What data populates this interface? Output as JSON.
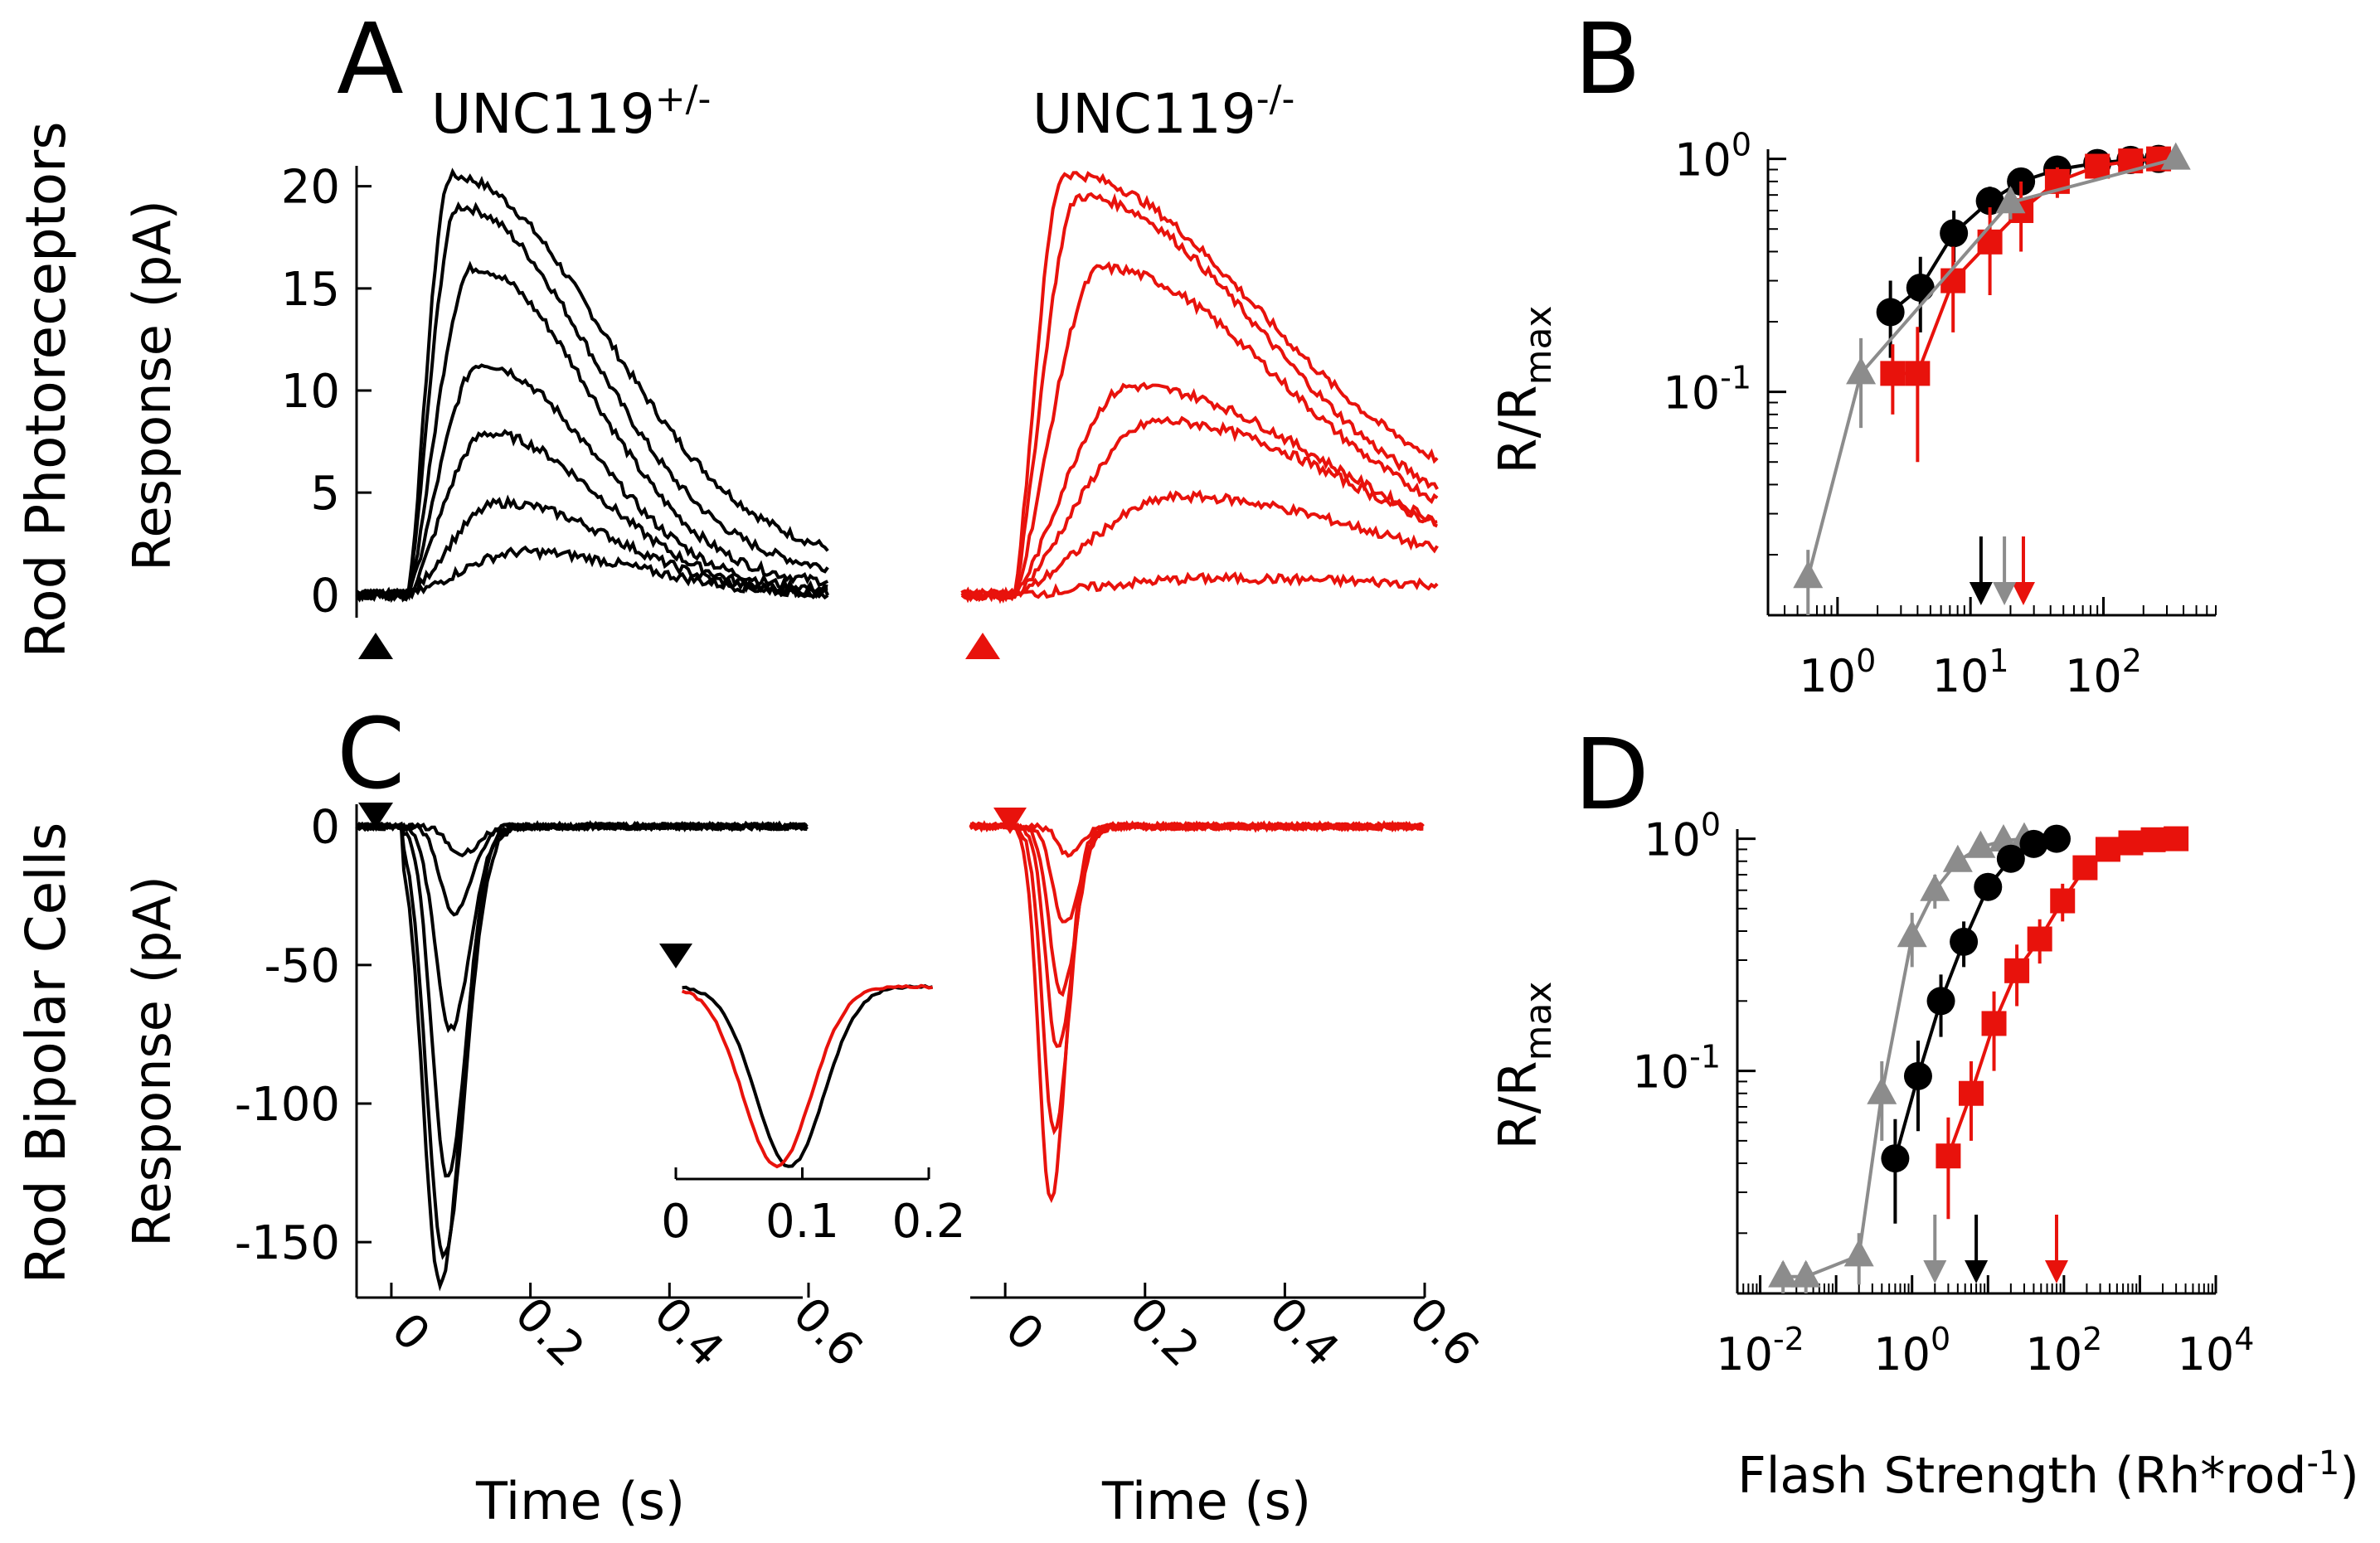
{
  "row_labels": {
    "top": "Rod Photoreceptors",
    "bottom": "Rod Bipolar Cells"
  },
  "panel_letters": {
    "A": "A",
    "B": "B",
    "C": "C",
    "D": "D"
  },
  "genotypes": {
    "het": "UNC119",
    "het_sup": "+/-",
    "ko": "UNC119",
    "ko_sup": "-/-"
  },
  "axis_text": {
    "response": "Response (pA)",
    "time": "Time (s)",
    "ratio_main": "R/R",
    "ratio_sub": "max",
    "flash_main": "Flash Strength (Rh*rod",
    "flash_sup": "-1",
    "flash_close": ")"
  },
  "colors": {
    "het": "#000000",
    "ko": "#e8120c",
    "wt": "#8c8c8c"
  },
  "chart_data": [
    {
      "id": "A",
      "type": "line",
      "title": "UNC119+/-",
      "ylabel": "Response (pA)",
      "xlabel": "",
      "xlim": [
        -0.05,
        0.6
      ],
      "ylim": [
        -1,
        21
      ],
      "xticks": [],
      "yticks": [
        0,
        5,
        10,
        15,
        20
      ],
      "ytick_labels": [
        "0",
        "5",
        "10",
        "15",
        "20"
      ],
      "flash_marker": "up-triangle at t=0",
      "series": [
        {
          "peak": 20.5,
          "t_peak": 0.08,
          "decay": 0.32,
          "end": 1.5
        },
        {
          "peak": 19.0,
          "t_peak": 0.09,
          "decay": 0.28,
          "end": 1.0
        },
        {
          "peak": 16.0,
          "t_peak": 0.11,
          "decay": 0.25,
          "end": 0.5
        },
        {
          "peak": 11.3,
          "t_peak": 0.12,
          "decay": 0.24,
          "end": 0.2
        },
        {
          "peak": 7.9,
          "t_peak": 0.13,
          "decay": 0.24,
          "end": 0.0
        },
        {
          "peak": 4.5,
          "t_peak": 0.15,
          "decay": 0.24,
          "end": 0.0
        },
        {
          "peak": 2.1,
          "t_peak": 0.18,
          "decay": 0.25,
          "end": 0.0
        }
      ]
    },
    {
      "id": "A2",
      "type": "line",
      "title": "UNC119-/-",
      "xlim": [
        -0.05,
        0.6
      ],
      "ylim": [
        -1,
        21
      ],
      "flash_marker": "up-triangle at t=0",
      "series": [
        {
          "peak": 20.6,
          "t_peak": 0.09,
          "decay": 0.4,
          "end": 4.3
        },
        {
          "peak": 19.5,
          "t_peak": 0.11,
          "decay": 0.38,
          "end": 3.0
        },
        {
          "peak": 16.0,
          "t_peak": 0.14,
          "decay": 0.37,
          "end": 2.5
        },
        {
          "peak": 10.2,
          "t_peak": 0.18,
          "decay": 0.4,
          "end": 1.2
        },
        {
          "peak": 8.5,
          "t_peak": 0.22,
          "decay": 0.4,
          "end": 0.8
        },
        {
          "peak": 4.8,
          "t_peak": 0.25,
          "decay": 0.4,
          "end": 0.5
        },
        {
          "peak": 0.8,
          "t_peak": 0.3,
          "decay": 0.4,
          "end": 0.2
        }
      ]
    },
    {
      "id": "B",
      "type": "scatter",
      "xlabel": "",
      "ylabel": "R/Rmax",
      "xscale": "log",
      "yscale": "log",
      "xlim": [
        0.3,
        700
      ],
      "ylim": [
        0.011,
        1.1
      ],
      "xtick_labels": [
        "10^0",
        "10^1",
        "10^2"
      ],
      "ytick_labels": [
        "10^0",
        "10^-1"
      ],
      "series": [
        {
          "name": "",
          "color": "#000000",
          "marker": "circle",
          "x": [
            2.5,
            4.2,
            7.5,
            14,
            24,
            45,
            90,
            160,
            260
          ],
          "y": [
            0.22,
            0.28,
            0.48,
            0.66,
            0.8,
            0.9,
            0.96,
            0.99,
            1.0
          ],
          "err": [
            0.08,
            0.1,
            0.12,
            0.1,
            0.08,
            0.06,
            0.04,
            0.02,
            0.01
          ],
          "arrow_x": 12
        },
        {
          "name": "",
          "color": "#e8120c",
          "marker": "square",
          "x": [
            2.6,
            4,
            7.4,
            14,
            24,
            45,
            90,
            160,
            260
          ],
          "y": [
            0.12,
            0.12,
            0.3,
            0.44,
            0.6,
            0.8,
            0.93,
            0.98,
            1.0
          ],
          "err": [
            0.04,
            0.07,
            0.12,
            0.18,
            0.2,
            0.12,
            0.06,
            0.02,
            0.01
          ],
          "arrow_x": 25
        },
        {
          "name": "",
          "color": "#8c8c8c",
          "marker": "triangle",
          "x": [
            0.6,
            1.5,
            20,
            350
          ],
          "y": [
            0.016,
            0.12,
            0.65,
            1.0
          ],
          "err": [
            0.005,
            0.05,
            0.1,
            0.01
          ],
          "arrow_x": 18
        }
      ]
    },
    {
      "id": "C",
      "type": "line",
      "ylabel": "Response (pA)",
      "xlabel": "Time (s)",
      "xlim": [
        -0.05,
        0.6
      ],
      "ylim": [
        -170,
        5
      ],
      "xtick_labels": [
        "0",
        "0.2",
        "0.4",
        "0.6"
      ],
      "ytick_labels": [
        "0",
        "-50",
        "-100",
        "-150"
      ],
      "flash_marker": "down-triangle at t=0",
      "series": [
        {
          "peak": -165,
          "t_peak": 0.07,
          "width": 0.05
        },
        {
          "peak": -155,
          "t_peak": 0.075,
          "width": 0.05
        },
        {
          "peak": -127,
          "t_peak": 0.08,
          "width": 0.045
        },
        {
          "peak": -73,
          "t_peak": 0.085,
          "width": 0.045
        },
        {
          "peak": -32,
          "t_peak": 0.09,
          "width": 0.04
        },
        {
          "peak": -10,
          "t_peak": 0.1,
          "width": 0.04
        }
      ],
      "inset": {
        "xlim": [
          0,
          0.2
        ],
        "xtick_labels": [
          "0",
          "0.1",
          "0.2"
        ],
        "series": [
          {
            "color": "#000000",
            "t_peak": 0.09
          },
          {
            "color": "#e8120c",
            "t_peak": 0.08
          }
        ]
      }
    },
    {
      "id": "C2",
      "type": "line",
      "xlabel": "Time (s)",
      "xlim": [
        -0.05,
        0.6
      ],
      "ylim": [
        -170,
        5
      ],
      "xtick_labels": [
        "0",
        "0.2",
        "0.4",
        "0.6"
      ],
      "flash_marker": "down-triangle at t=0",
      "series": [
        {
          "peak": -135,
          "t_peak": 0.065,
          "width": 0.035
        },
        {
          "peak": -110,
          "t_peak": 0.07,
          "width": 0.035
        },
        {
          "peak": -80,
          "t_peak": 0.075,
          "width": 0.035
        },
        {
          "peak": -60,
          "t_peak": 0.08,
          "width": 0.035
        },
        {
          "peak": -35,
          "t_peak": 0.085,
          "width": 0.035
        },
        {
          "peak": -10,
          "t_peak": 0.09,
          "width": 0.03
        }
      ]
    },
    {
      "id": "D",
      "type": "scatter",
      "xlabel": "Flash Strength (Rh*rod-1)",
      "ylabel": "R/Rmax",
      "xscale": "log",
      "yscale": "log",
      "xlim": [
        0.005,
        10000
      ],
      "ylim": [
        0.011,
        1.1
      ],
      "xtick_labels": [
        "10^-2",
        "10^0",
        "10^2",
        "10^4"
      ],
      "ytick_labels": [
        "10^0",
        "10^-1"
      ],
      "series": [
        {
          "name": "",
          "color": "#8c8c8c",
          "marker": "triangle",
          "x": [
            0.02,
            0.04,
            0.2,
            0.4,
            1,
            2,
            4,
            8,
            16,
            30
          ],
          "y": [
            0.013,
            0.013,
            0.016,
            0.08,
            0.38,
            0.6,
            0.8,
            0.92,
            0.98,
            1.0
          ],
          "err": [
            0.002,
            0.002,
            0.004,
            0.03,
            0.1,
            0.1,
            0.06,
            0.04,
            0.02,
            0.01
          ],
          "arrow_x": 2
        },
        {
          "name": "",
          "color": "#000000",
          "marker": "circle",
          "x": [
            0.6,
            1.2,
            2.4,
            4.8,
            10,
            20,
            40,
            80
          ],
          "y": [
            0.042,
            0.095,
            0.2,
            0.36,
            0.62,
            0.82,
            0.95,
            1.0
          ],
          "err": [
            0.02,
            0.04,
            0.06,
            0.08,
            0.08,
            0.06,
            0.04,
            0.02
          ],
          "arrow_x": 7
        },
        {
          "name": "",
          "color": "#e8120c",
          "marker": "square",
          "x": [
            3,
            6,
            12,
            24,
            48,
            96,
            190,
            380,
            760,
            1500,
            3000
          ],
          "y": [
            0.043,
            0.08,
            0.16,
            0.27,
            0.37,
            0.54,
            0.75,
            0.9,
            0.96,
            0.99,
            1.0
          ],
          "err": [
            0.02,
            0.03,
            0.06,
            0.08,
            0.08,
            0.1,
            0.08,
            0.05,
            0.03,
            0.02,
            0.01
          ],
          "arrow_x": 80
        }
      ]
    }
  ]
}
